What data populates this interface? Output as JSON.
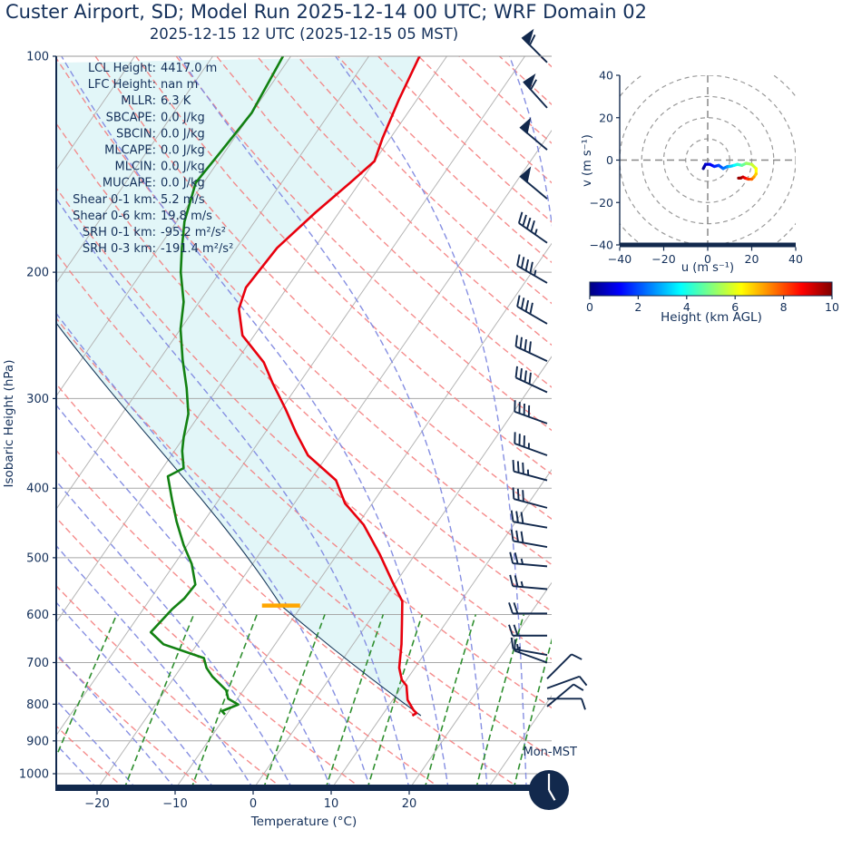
{
  "title": "Custer Airport, SD; Model Run 2025-12-14 00 UTC; WRF Domain 02",
  "subtitle": "2025-12-15 12 UTC  (2025-12-15 05 MST)",
  "day_label": "Mon-MST",
  "clock": {
    "time": "05:00",
    "hour_angle_deg": 150,
    "minute_angle_deg": 0
  },
  "colors": {
    "text": "#14305a",
    "temperature": "#e8000d",
    "dewpoint": "#128112",
    "parcel": "#1a3a5c",
    "shade": "#e2f6f8",
    "dry_adiabat": "#f47f7f",
    "moist_adiabat": "#8089e0",
    "mixing_ratio": "#2f8f2f",
    "isotherm": "#b5b5b5",
    "gridline": "#a8a8a8",
    "navy": "#12294d",
    "lcl_marker": "#ffa600"
  },
  "skewt": {
    "ylabel": "Isobaric Height (hPa)",
    "xlabel": "Temperature (°C)",
    "x_ticks": [
      -20,
      -10,
      0,
      10,
      20
    ],
    "y_ticks": [
      100,
      200,
      300,
      400,
      500,
      600,
      700,
      800,
      900,
      1000
    ],
    "stats": [
      {
        "label": "LCL Height",
        "value": "4417.0 m"
      },
      {
        "label": "LFC Height",
        "value": "nan m"
      },
      {
        "label": "MLLR",
        "value": "6.3 K"
      },
      {
        "label": "SBCAPE",
        "value": "0.0 J/kg"
      },
      {
        "label": "SBCIN",
        "value": "0.0 J/kg"
      },
      {
        "label": "MLCAPE",
        "value": "0.0 J/kg"
      },
      {
        "label": "MLCIN",
        "value": "0.0 J/kg"
      },
      {
        "label": "MUCAPE",
        "value": "0.0 J/kg"
      },
      {
        "label": "Shear 0-1 km",
        "value": "5.2 m/s"
      },
      {
        "label": "Shear 0-6 km",
        "value": "19.8 m/s"
      },
      {
        "label": "SRH 0-1 km",
        "value": "-95.2 m²/s²"
      },
      {
        "label": "SRH 0-3 km",
        "value": "-191.4 m²/s²"
      }
    ]
  },
  "chart_data": {
    "type": "line",
    "title": "Skew-T log-p sounding with hodograph inset",
    "skewt": {
      "pressure_range_hpa": [
        100,
        1050
      ],
      "temp_axis_range_c": [
        -25.5,
        38.5
      ],
      "isotherm_step_c": 10,
      "temperature_profile_p_t": [
        [
          100,
          -43.5
        ],
        [
          115,
          -42.3
        ],
        [
          130,
          -41.0
        ],
        [
          140,
          -40.0
        ],
        [
          150,
          -41.2
        ],
        [
          165,
          -43.0
        ],
        [
          185,
          -44.8
        ],
        [
          210,
          -45.3
        ],
        [
          225,
          -44.3
        ],
        [
          245,
          -41.5
        ],
        [
          267,
          -36.4
        ],
        [
          285,
          -33.5
        ],
        [
          310,
          -29.5
        ],
        [
          335,
          -26.0
        ],
        [
          360,
          -22.5
        ],
        [
          390,
          -16.7
        ],
        [
          420,
          -13.5
        ],
        [
          450,
          -9.2
        ],
        [
          495,
          -4.5
        ],
        [
          540,
          -0.5
        ],
        [
          575,
          2.5
        ],
        [
          617,
          4.4
        ],
        [
          660,
          6.2
        ],
        [
          712,
          8.0
        ],
        [
          740,
          9.4
        ],
        [
          754,
          10.5
        ],
        [
          789,
          11.9
        ],
        [
          816,
          13.6
        ],
        [
          823,
          14.2
        ],
        [
          830,
          13.9
        ]
      ],
      "dewpoint_profile_p_t": [
        [
          100,
          -61.0
        ],
        [
          120,
          -60.0
        ],
        [
          135,
          -60.5
        ],
        [
          150,
          -61.0
        ],
        [
          170,
          -59.0
        ],
        [
          185,
          -57.0
        ],
        [
          200,
          -55.0
        ],
        [
          220,
          -52.0
        ],
        [
          240,
          -50.0
        ],
        [
          265,
          -47.0
        ],
        [
          290,
          -44.0
        ],
        [
          315,
          -41.5
        ],
        [
          340,
          -40.0
        ],
        [
          355,
          -39.0
        ],
        [
          375,
          -37.3
        ],
        [
          385,
          -38.6
        ],
        [
          415,
          -36.0
        ],
        [
          445,
          -33.5
        ],
        [
          480,
          -30.5
        ],
        [
          510,
          -27.8
        ],
        [
          545,
          -25.5
        ],
        [
          570,
          -25.7
        ],
        [
          590,
          -26.3
        ],
        [
          635,
          -27.0
        ],
        [
          660,
          -24.3
        ],
        [
          690,
          -17.9
        ],
        [
          712,
          -16.7
        ],
        [
          732,
          -15.2
        ],
        [
          765,
          -12.2
        ],
        [
          786,
          -11.2
        ],
        [
          801,
          -9.4
        ],
        [
          818,
          -10.9
        ],
        [
          827,
          -10.2
        ]
      ],
      "parcel": {
        "surface_p": 830,
        "surface_t": 15.0,
        "lcl_p": 583,
        "lcl_height_m": 4417
      },
      "wind_barbs_p_dir_kt": [
        [
          102,
          315,
          60
        ],
        [
          118,
          318,
          60
        ],
        [
          135,
          310,
          50
        ],
        [
          158,
          310,
          50
        ],
        [
          182,
          305,
          45
        ],
        [
          207,
          300,
          45
        ],
        [
          236,
          300,
          40
        ],
        [
          266,
          295,
          40
        ],
        [
          294,
          295,
          40
        ],
        [
          325,
          290,
          40
        ],
        [
          360,
          290,
          35
        ],
        [
          390,
          285,
          35
        ],
        [
          426,
          285,
          30
        ],
        [
          454,
          280,
          30
        ],
        [
          483,
          280,
          30
        ],
        [
          514,
          275,
          25
        ],
        [
          553,
          275,
          25
        ],
        [
          598,
          270,
          20
        ],
        [
          642,
          270,
          20
        ],
        [
          683,
          280,
          15
        ],
        [
          700,
          290,
          15
        ],
        [
          737,
          45,
          10
        ],
        [
          760,
          70,
          10
        ],
        [
          786,
          90,
          10
        ],
        [
          806,
          50,
          10
        ]
      ],
      "mixing_ratio_lines_g_kg": [
        0.4,
        1,
        2,
        4,
        7,
        10,
        16,
        24,
        32
      ],
      "dry_adiabat_theta_c": {
        "start": -30,
        "end": 220,
        "step": 10
      },
      "moist_adiabat_t0_c": {
        "start": -60,
        "end": 40,
        "step": 5
      }
    },
    "hodograph": {
      "xlabel": "u (m s⁻¹)",
      "ylabel": "v (m s⁻¹)",
      "ticks": [
        -40,
        -20,
        0,
        20,
        40
      ],
      "rings": [
        10,
        20,
        30,
        40,
        50
      ],
      "trace_h_u_v": [
        [
          0,
          -2,
          -4
        ],
        [
          0.3,
          -1.5,
          -3
        ],
        [
          0.6,
          -1,
          -2
        ],
        [
          1,
          1,
          -2
        ],
        [
          1.4,
          3,
          -3
        ],
        [
          1.8,
          5,
          -2.5
        ],
        [
          2.2,
          7,
          -4
        ],
        [
          2.6,
          9,
          -3
        ],
        [
          3,
          10,
          -3
        ],
        [
          3.5,
          12,
          -2.5
        ],
        [
          4,
          13.5,
          -2
        ],
        [
          4.5,
          15.5,
          -2.5
        ],
        [
          5,
          17.5,
          -1.5
        ],
        [
          5.5,
          20,
          -2
        ],
        [
          6,
          22,
          -4
        ],
        [
          6.5,
          22,
          -6.5
        ],
        [
          7,
          21,
          -8
        ],
        [
          7.5,
          20,
          -9
        ],
        [
          8,
          18.5,
          -9
        ],
        [
          8.5,
          17,
          -8.5
        ],
        [
          9,
          16,
          -8
        ],
        [
          9.5,
          15,
          -8.5
        ],
        [
          10,
          14,
          -8.5
        ]
      ]
    },
    "colorbar": {
      "label": "Height (km AGL)",
      "min": 0,
      "max": 10,
      "ticks": [
        0,
        2,
        4,
        6,
        8,
        10
      ],
      "cmap": "jet"
    }
  }
}
